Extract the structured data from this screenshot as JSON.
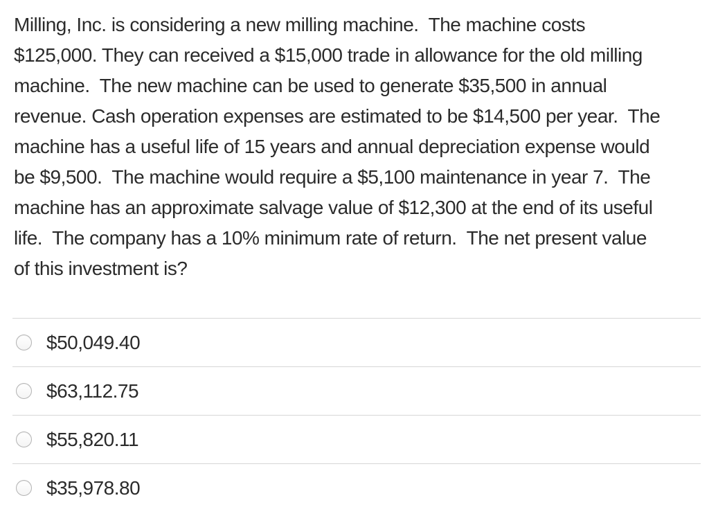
{
  "question": {
    "lines": [
      "Milling, Inc. is considering a new milling machine.  The machine costs",
      "$125,000. They can received a $15,000 trade in allowance for the old milling",
      "machine.  The new machine can be used to generate $35,500 in annual",
      "revenue. Cash operation expenses are estimated to be $14,500 per year.  The",
      "machine has a useful life of 15 years and annual depreciation expense would",
      "be $9,500.  The machine would require a $5,100 maintenance in year 7.  The",
      "machine has an approximate salvage value of $12,300 at the end of its useful",
      "life.  The company has a 10% minimum rate of return.  The net present value",
      "of this investment is?"
    ]
  },
  "options": [
    {
      "label": "$50,049.40",
      "selected": false
    },
    {
      "label": "$63,112.75",
      "selected": false
    },
    {
      "label": "$55,820.11",
      "selected": false
    },
    {
      "label": "$35,978.80",
      "selected": false
    }
  ],
  "colors": {
    "text": "#2b2b2b",
    "divider": "#d6d6d6",
    "radio_border": "#b3b3b3",
    "background": "#ffffff"
  }
}
